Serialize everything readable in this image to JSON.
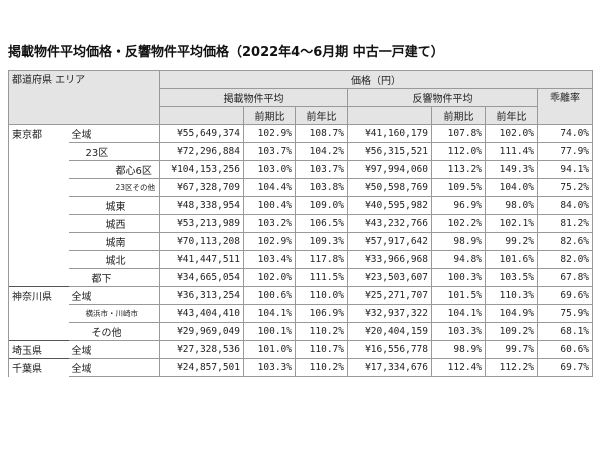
{
  "title": "掲載物件平均価格・反響物件平均価格（2022年4～6月期 中古一戸建て）",
  "table": {
    "header": {
      "region": "都道府県 エリア",
      "price": "価格（円）",
      "listed": "掲載物件平均",
      "inquiry": "反響物件平均",
      "gap": "乖離率",
      "listed_qoq": "前期比",
      "listed_yoy": "前年比",
      "inquiry_qoq": "前期比",
      "inquiry_yoy": "前年比"
    },
    "rows": [
      {
        "pref": "東京都",
        "area": "全域",
        "cells": [
          "¥55,649,374",
          "102.9%",
          "108.7%",
          "¥41,160,179",
          "107.8%",
          "102.0%",
          "74.0%"
        ]
      },
      {
        "area": "23区",
        "cells": [
          "¥72,296,884",
          "103.7%",
          "104.2%",
          "¥56,315,521",
          "112.0%",
          "111.4%",
          "77.9%"
        ]
      },
      {
        "area": "都心6区",
        "cells": [
          "¥104,153,256",
          "103.0%",
          "103.7%",
          "¥97,994,060",
          "113.2%",
          "149.3%",
          "94.1%"
        ]
      },
      {
        "area": "23区その他",
        "cells": [
          "¥67,328,709",
          "104.4%",
          "103.8%",
          "¥50,598,769",
          "109.5%",
          "104.0%",
          "75.2%"
        ]
      },
      {
        "area": "城東",
        "cells": [
          "¥48,338,954",
          "100.4%",
          "109.0%",
          "¥40,595,982",
          "96.9%",
          "98.0%",
          "84.0%"
        ]
      },
      {
        "area": "城西",
        "cells": [
          "¥53,213,989",
          "103.2%",
          "106.5%",
          "¥43,232,766",
          "102.2%",
          "102.1%",
          "81.2%"
        ]
      },
      {
        "area": "城南",
        "cells": [
          "¥70,113,208",
          "102.9%",
          "109.3%",
          "¥57,917,642",
          "98.9%",
          "99.2%",
          "82.6%"
        ]
      },
      {
        "area": "城北",
        "cells": [
          "¥41,447,511",
          "103.4%",
          "117.8%",
          "¥33,966,968",
          "94.8%",
          "101.6%",
          "82.0%"
        ]
      },
      {
        "area": "都下",
        "cells": [
          "¥34,665,054",
          "102.0%",
          "111.5%",
          "¥23,503,607",
          "100.3%",
          "103.5%",
          "67.8%"
        ]
      },
      {
        "pref": "神奈川県",
        "area": "全域",
        "cells": [
          "¥36,313,254",
          "100.6%",
          "110.0%",
          "¥25,271,707",
          "101.5%",
          "110.3%",
          "69.6%"
        ]
      },
      {
        "area": "横浜市・川崎市",
        "cells": [
          "¥43,404,410",
          "104.1%",
          "106.9%",
          "¥32,937,322",
          "104.1%",
          "104.9%",
          "75.9%"
        ]
      },
      {
        "area": "その他",
        "cells": [
          "¥29,969,049",
          "100.1%",
          "110.2%",
          "¥20,404,159",
          "103.3%",
          "109.2%",
          "68.1%"
        ]
      },
      {
        "pref": "埼玉県",
        "area": "全域",
        "cells": [
          "¥27,328,536",
          "101.0%",
          "110.7%",
          "¥16,556,778",
          "98.9%",
          "99.7%",
          "60.6%"
        ]
      },
      {
        "pref": "千葉県",
        "area": "全域",
        "cells": [
          "¥24,857,501",
          "103.3%",
          "110.2%",
          "¥17,334,676",
          "112.4%",
          "112.2%",
          "69.7%"
        ]
      }
    ]
  }
}
